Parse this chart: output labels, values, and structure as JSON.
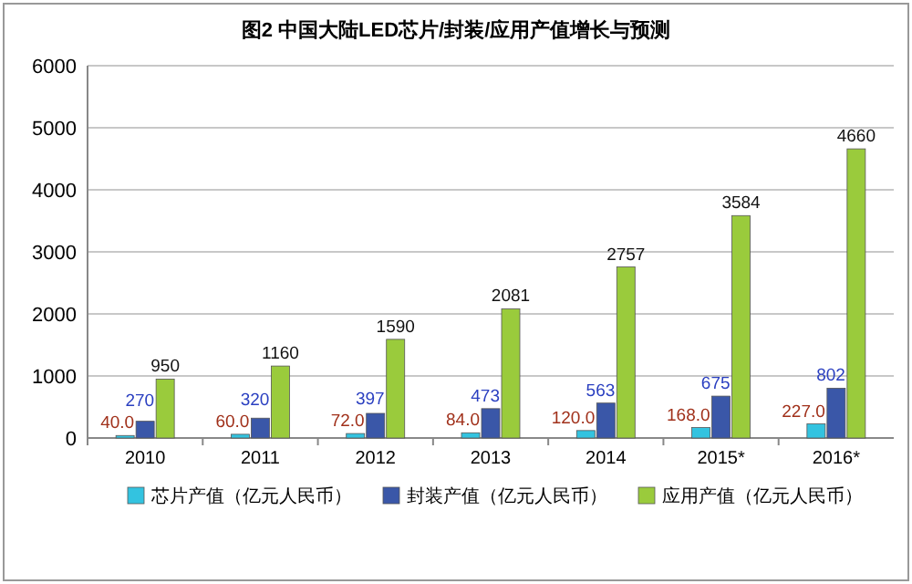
{
  "chart_data": {
    "type": "bar",
    "title": "图2 中国大陆LED芯片/封装/应用产值增长与预测",
    "categories": [
      "2010",
      "2011",
      "2012",
      "2013",
      "2014",
      "2015*",
      "2016*"
    ],
    "series": [
      {
        "name": "芯片产值（亿元人民币）",
        "color": "#33c3e0",
        "values": [
          40,
          60,
          72,
          84,
          120,
          168,
          227
        ],
        "value_labels": [
          "40.0",
          "60.0",
          "72.0",
          "84.0",
          "120.0",
          "168.0",
          "227.0"
        ]
      },
      {
        "name": "封装产值（亿元人民币）",
        "color": "#3a57a8",
        "values": [
          270,
          320,
          397,
          473,
          563,
          675,
          802
        ],
        "value_labels": [
          "270",
          "320",
          "397",
          "473",
          "563",
          "675",
          "802"
        ]
      },
      {
        "name": "应用产值（亿元人民币）",
        "color": "#9acb3c",
        "values": [
          950,
          1160,
          1590,
          2081,
          2757,
          3584,
          4660
        ],
        "value_labels": [
          "950",
          "1160",
          "1590",
          "2081",
          "2757",
          "3584",
          "4660"
        ]
      }
    ],
    "ylim": [
      0,
      6000
    ],
    "yticks": [
      0,
      1000,
      2000,
      3000,
      4000,
      5000,
      6000
    ],
    "grid": "y",
    "legend": "bottom"
  }
}
